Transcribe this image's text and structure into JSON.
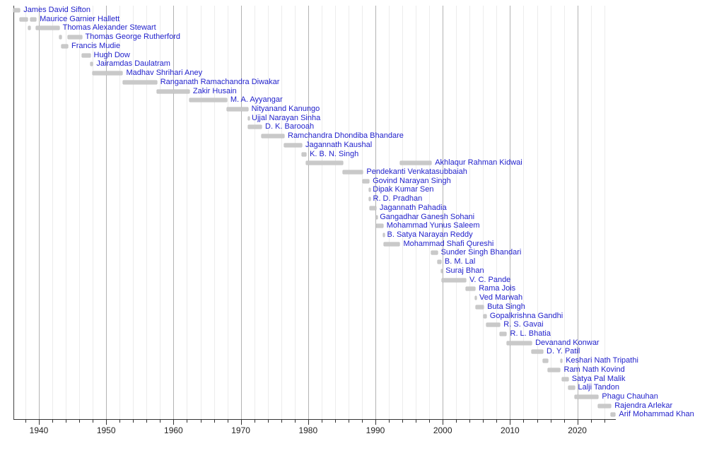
{
  "page": {
    "background": "#ffffff"
  },
  "colors": {
    "label_blue": "#2222cc",
    "bar_fill": "#c9c9c9",
    "bar_edge": "#b7b7b7",
    "grid_minor": "#ececec",
    "grid_major": "#b3b3b3",
    "axis": "#333333",
    "tick_label": "#222222",
    "start_line": "#444444"
  },
  "chart_data": {
    "type": "bar",
    "variant": "timeline-gantt",
    "title": "",
    "xlabel": "",
    "ylabel": "",
    "legend": null,
    "grid": {
      "minor_increment_years": 2,
      "major_increment_years": 10,
      "grid_on": true
    },
    "x_axis": {
      "range": [
        1936.25,
        2025.8
      ],
      "major_ticks": [
        1940,
        1950,
        1960,
        1970,
        1980,
        1990,
        2000,
        2010,
        2020
      ],
      "minor_tick_increment": 2,
      "minor_tick_start": 1938,
      "minor_tick_end": 2024
    },
    "entries": [
      {
        "name": "James David Sifton",
        "segments": [
          [
            1936.25,
            1937.19
          ]
        ]
      },
      {
        "name": "Maurice Garnier Hallett",
        "segments": [
          [
            1937.19,
            1938.37
          ],
          [
            1938.72,
            1939.59
          ]
        ]
      },
      {
        "name": "Thomas Alexander Stewart",
        "segments": [
          [
            1938.37,
            1938.72
          ],
          [
            1939.59,
            1943.0
          ]
        ]
      },
      {
        "name": "Thomas George Rutherford",
        "segments": [
          [
            1943.0,
            1943.37
          ],
          [
            1944.31,
            1946.36
          ]
        ]
      },
      {
        "name": "Francis Mudie",
        "segments": [
          [
            1943.37,
            1944.31
          ]
        ]
      },
      {
        "name": "Hugh Dow",
        "segments": [
          [
            1946.36,
            1947.62
          ]
        ]
      },
      {
        "name": "Jairamdas Daulatram",
        "segments": [
          [
            1947.62,
            1948.03
          ]
        ]
      },
      {
        "name": "Madhav Shrihari Aney",
        "segments": [
          [
            1948.03,
            1952.45
          ]
        ]
      },
      {
        "name": "Ranganath Ramachandra Diwakar",
        "segments": [
          [
            1952.45,
            1957.51
          ]
        ]
      },
      {
        "name": "Zakir Husain",
        "segments": [
          [
            1957.51,
            1962.36
          ]
        ]
      },
      {
        "name": "M. A. Ayyangar",
        "segments": [
          [
            1962.36,
            1967.93
          ]
        ]
      },
      {
        "name": "Nityanand Kanungo",
        "segments": [
          [
            1967.93,
            1971.05
          ]
        ]
      },
      {
        "name": "Ujjal Narayan Sinha",
        "segments": [
          [
            1971.05,
            1971.09
          ]
        ]
      },
      {
        "name": "D. K. Barooah",
        "segments": [
          [
            1971.09,
            1973.09
          ]
        ]
      },
      {
        "name": "Ramchandra Dhondiba Bhandare",
        "segments": [
          [
            1973.09,
            1976.45
          ]
        ]
      },
      {
        "name": "Jagannath Kaushal",
        "segments": [
          [
            1976.45,
            1979.08
          ]
        ]
      },
      {
        "name": "K. B. N. Singh",
        "segments": [
          [
            1979.08,
            1979.72
          ]
        ]
      },
      {
        "name": "Akhlaqur Rahman Kidwai",
        "segments": [
          [
            1979.72,
            1985.2
          ],
          [
            1993.62,
            1998.32
          ]
        ]
      },
      {
        "name": "Pendekanti Venkatasubbaiah",
        "segments": [
          [
            1985.2,
            1988.15
          ]
        ]
      },
      {
        "name": "Govind Narayan Singh",
        "segments": [
          [
            1988.15,
            1989.07
          ]
        ]
      },
      {
        "name": "Dipak Kumar Sen",
        "segments": [
          [
            1989.07,
            1989.09
          ]
        ]
      },
      {
        "name": "R. D. Pradhan",
        "segments": [
          [
            1989.09,
            1989.11
          ]
        ]
      },
      {
        "name": "Jagannath Pahadia",
        "segments": [
          [
            1989.17,
            1990.09
          ]
        ]
      },
      {
        "name": "Gangadhar Ganesh Sohani",
        "segments": [
          [
            1990.09,
            1990.13
          ]
        ]
      },
      {
        "name": "Mohammad Yunus Saleem",
        "segments": [
          [
            1990.13,
            1991.12
          ]
        ]
      },
      {
        "name": "B. Satya Narayan Reddy",
        "segments": [
          [
            1991.12,
            1991.21
          ]
        ]
      },
      {
        "name": "Mohammad Shafi Qureshi",
        "segments": [
          [
            1991.21,
            1993.62
          ]
        ]
      },
      {
        "name": "Sunder Singh Bhandari",
        "segments": [
          [
            1998.32,
            1999.2
          ]
        ]
      },
      {
        "name": "B. M. Lal",
        "segments": [
          [
            1999.2,
            1999.76
          ]
        ]
      },
      {
        "name": "Suraj Bhan",
        "segments": [
          [
            1999.76,
            1999.89
          ]
        ]
      },
      {
        "name": "V. C. Pande",
        "segments": [
          [
            1999.89,
            2003.45
          ]
        ]
      },
      {
        "name": "Rama Jois",
        "segments": [
          [
            2003.45,
            2004.83
          ]
        ]
      },
      {
        "name": "Ved Marwah",
        "segments": [
          [
            2004.83,
            2004.92
          ]
        ]
      },
      {
        "name": "Buta Singh",
        "segments": [
          [
            2004.92,
            2006.08
          ]
        ]
      },
      {
        "name": "Gopalkrishna Gandhi",
        "segments": [
          [
            2006.08,
            2006.47
          ]
        ]
      },
      {
        "name": "R. S. Gavai",
        "segments": [
          [
            2006.47,
            2008.52
          ]
        ]
      },
      {
        "name": "R. L. Bhatia",
        "segments": [
          [
            2008.52,
            2009.49
          ]
        ]
      },
      {
        "name": "Devanand Konwar",
        "segments": [
          [
            2009.49,
            2013.22
          ]
        ]
      },
      {
        "name": "D. Y. Patil",
        "segments": [
          [
            2013.22,
            2014.9
          ]
        ]
      },
      {
        "name": "Keshari Nath Tripathi",
        "segments": [
          [
            2014.9,
            2015.62
          ],
          [
            2017.47,
            2017.75
          ]
        ]
      },
      {
        "name": "Ram Nath Kovind",
        "segments": [
          [
            2015.62,
            2017.47
          ]
        ]
      },
      {
        "name": "Satya Pal Malik",
        "segments": [
          [
            2017.75,
            2018.64
          ]
        ]
      },
      {
        "name": "Lalji Tandon",
        "segments": [
          [
            2018.64,
            2019.57
          ]
        ]
      },
      {
        "name": "Phagu Chauhan",
        "segments": [
          [
            2019.57,
            2023.13
          ]
        ]
      },
      {
        "name": "Rajendra Arlekar",
        "segments": [
          [
            2023.13,
            2025.0
          ]
        ]
      },
      {
        "name": "Arif Mohammad Khan",
        "segments": [
          [
            2025.02,
            2025.65
          ]
        ]
      }
    ]
  }
}
